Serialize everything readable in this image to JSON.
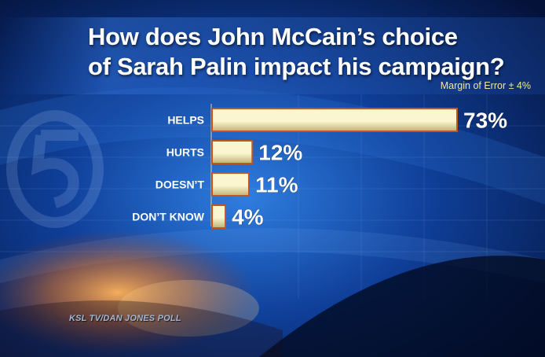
{
  "header": {
    "title_line1": "How does John McCain’s choice",
    "title_line2": "of Sarah Palin impact his campaign?",
    "margin_of_error": "Margin of Error ± 4%"
  },
  "footer": {
    "source": "KSL TV/DAN JONES POLL"
  },
  "colors": {
    "bar_fill_light": "#fbf6cf",
    "bar_fill_dark": "#bdb274",
    "bar_border": "#c0561b",
    "label_text": "#ffffff"
  },
  "chart_data": {
    "type": "bar",
    "orientation": "horizontal",
    "title": "How does John McCain’s choice of Sarah Palin impact his campaign?",
    "categories": [
      "HELPS",
      "HURTS",
      "DOESN’T",
      "DON’T KNOW"
    ],
    "values": [
      73,
      12,
      11,
      4
    ],
    "value_labels": [
      "73%",
      "12%",
      "11%",
      "4%"
    ],
    "unit": "%",
    "xlim": [
      0,
      73
    ]
  }
}
